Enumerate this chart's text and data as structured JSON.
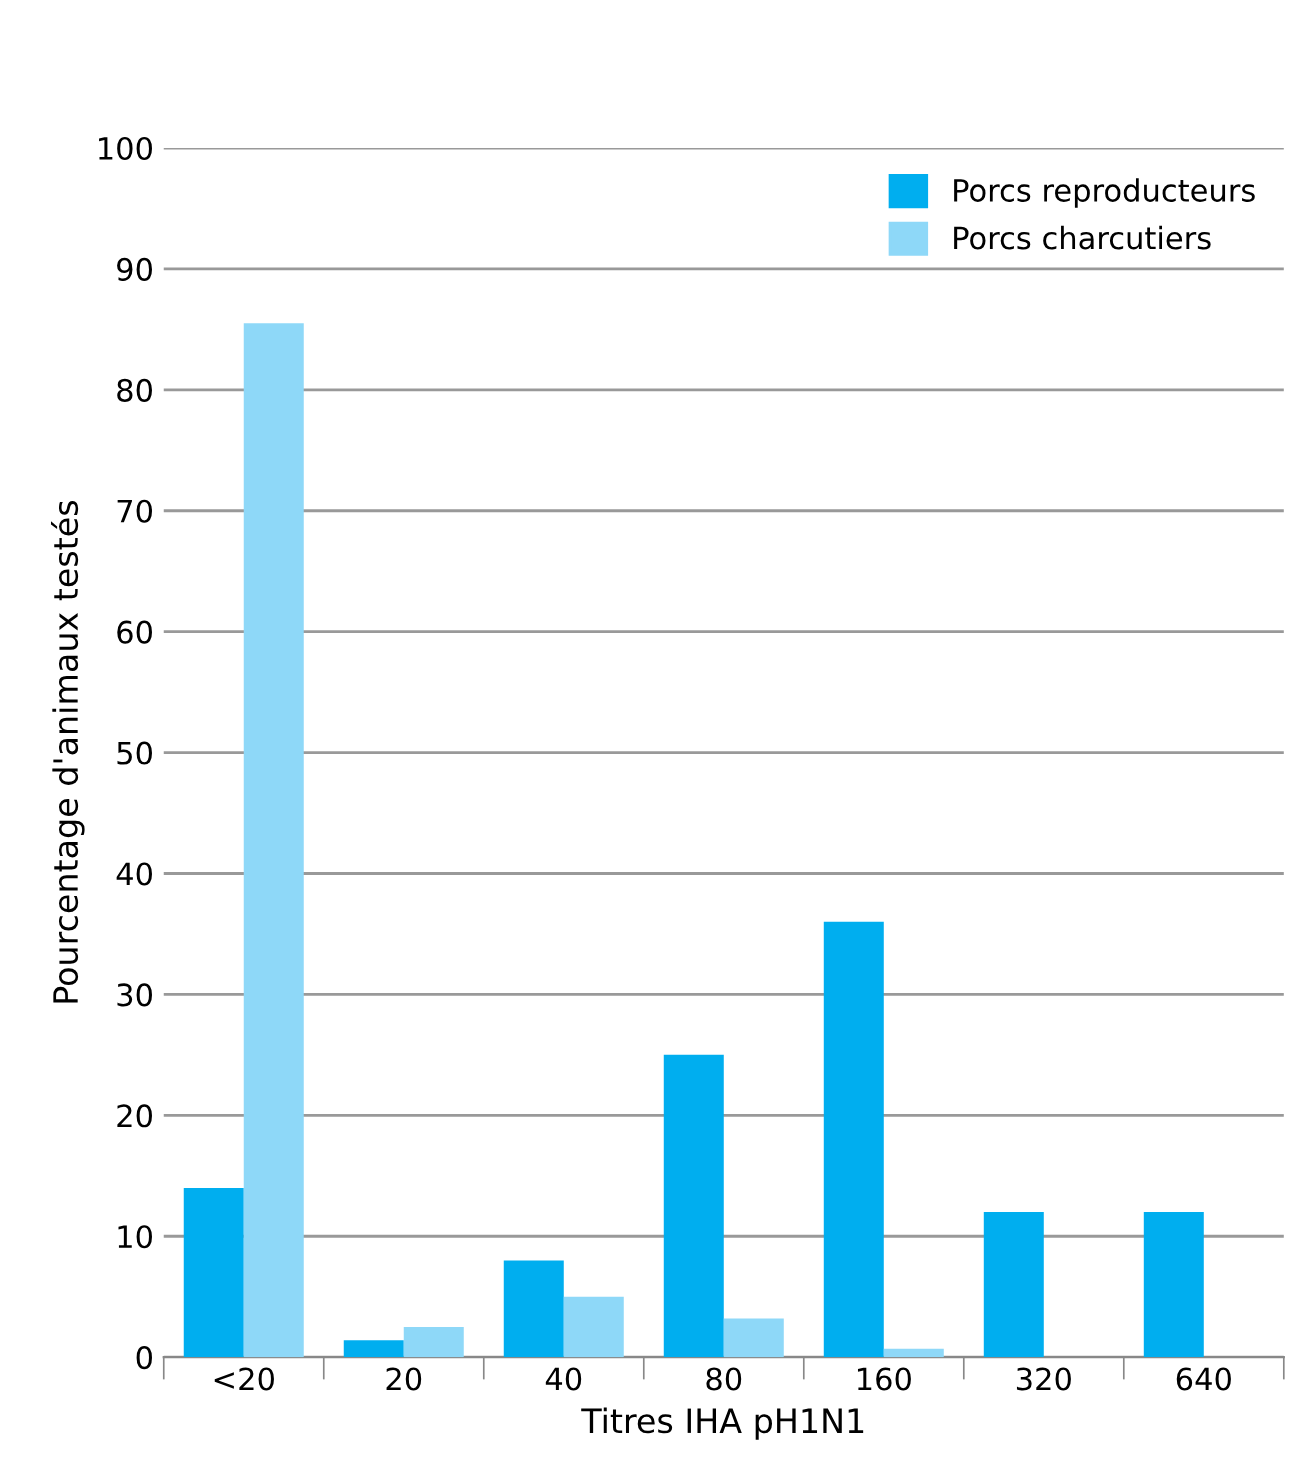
{
  "chart_data": {
    "type": "bar",
    "xlabel": "Titres IHA pH1N1",
    "ylabel": "Pourcentage d'animaux testés",
    "categories": [
      "<20",
      "20",
      "40",
      "80",
      "160",
      "320",
      "640"
    ],
    "series": [
      {
        "name": "Porcs reproducteurs",
        "color": "#00aeef",
        "values": [
          14,
          1.4,
          8,
          25,
          36,
          12,
          12
        ]
      },
      {
        "name": "Porcs charcutiers",
        "color": "#8ed8f8",
        "values": [
          85.5,
          2.5,
          5,
          3.2,
          0.7,
          null,
          null
        ]
      }
    ],
    "ylim": [
      0,
      100
    ],
    "yticks": [
      0,
      10,
      20,
      30,
      40,
      50,
      60,
      70,
      80,
      90,
      100
    ],
    "grid": "y",
    "legend": "top right"
  }
}
